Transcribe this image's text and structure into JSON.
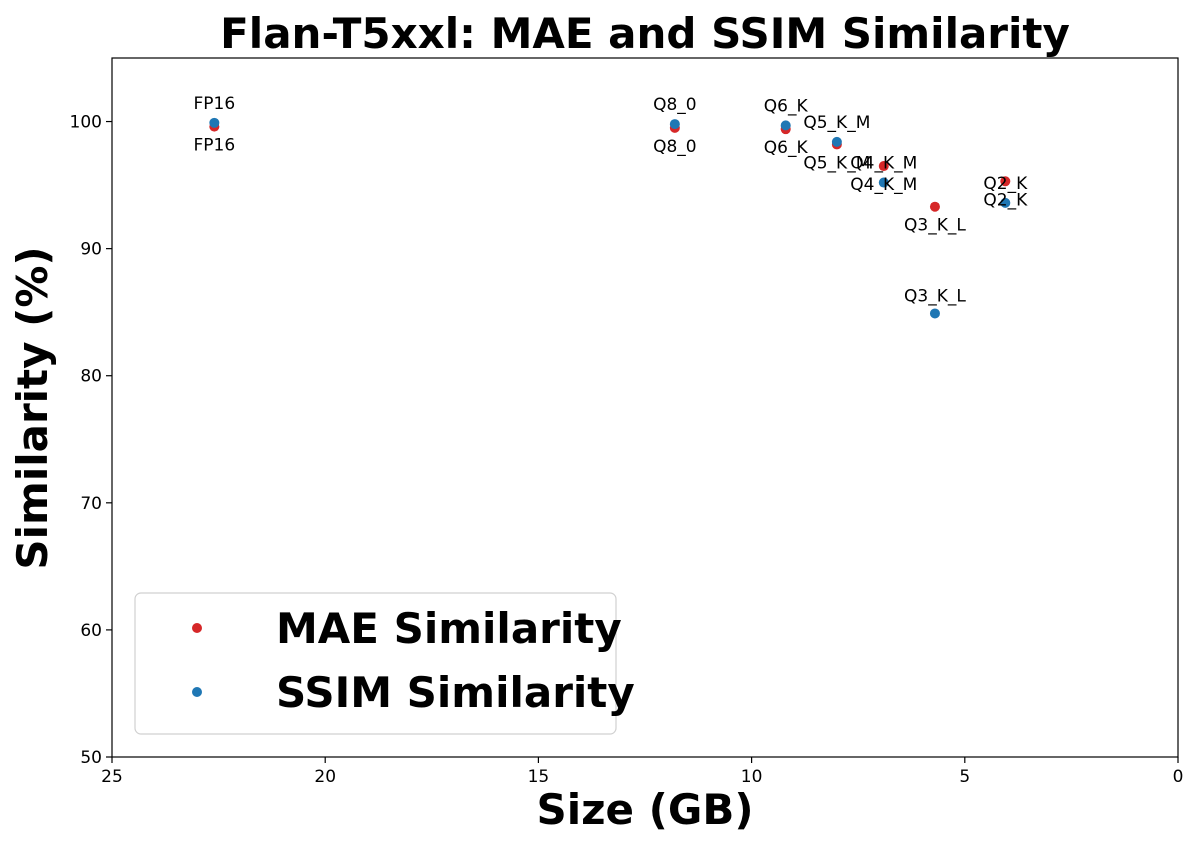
{
  "chart_data": {
    "type": "scatter",
    "title": "Flan-T5xxl: MAE and SSIM Similarity",
    "xlabel": "Size (GB)",
    "ylabel": "Similarity (%)",
    "xlim": [
      25,
      0
    ],
    "ylim": [
      50,
      105
    ],
    "x_inverted": true,
    "xticks": [
      25,
      20,
      15,
      10,
      5,
      0
    ],
    "yticks": [
      50,
      60,
      70,
      80,
      90,
      100
    ],
    "grid": false,
    "legend_position": "lower-left",
    "series": [
      {
        "name": "MAE Similarity",
        "color": "#d62728",
        "points": [
          {
            "label": "FP16",
            "x": 22.6,
            "y": 99.6
          },
          {
            "label": "Q8_0",
            "x": 11.8,
            "y": 99.5
          },
          {
            "label": "Q6_K",
            "x": 9.2,
            "y": 99.4
          },
          {
            "label": "Q5_K_M",
            "x": 8.0,
            "y": 98.2
          },
          {
            "label": "Q4_K_M",
            "x": 6.9,
            "y": 96.5
          },
          {
            "label": "Q3_K_L",
            "x": 5.7,
            "y": 93.3
          },
          {
            "label": "Q2_K",
            "x": 4.05,
            "y": 95.3
          }
        ]
      },
      {
        "name": "SSIM Similarity",
        "color": "#1f77b4",
        "points": [
          {
            "label": "FP16",
            "x": 22.6,
            "y": 99.9
          },
          {
            "label": "Q8_0",
            "x": 11.8,
            "y": 99.8
          },
          {
            "label": "Q6_K",
            "x": 9.2,
            "y": 99.7
          },
          {
            "label": "Q5_K_M",
            "x": 8.0,
            "y": 98.4
          },
          {
            "label": "Q4_K_M",
            "x": 6.9,
            "y": 95.2
          },
          {
            "label": "Q3_K_L",
            "x": 5.7,
            "y": 84.9
          },
          {
            "label": "Q2_K",
            "x": 4.05,
            "y": 93.6
          }
        ]
      }
    ]
  }
}
